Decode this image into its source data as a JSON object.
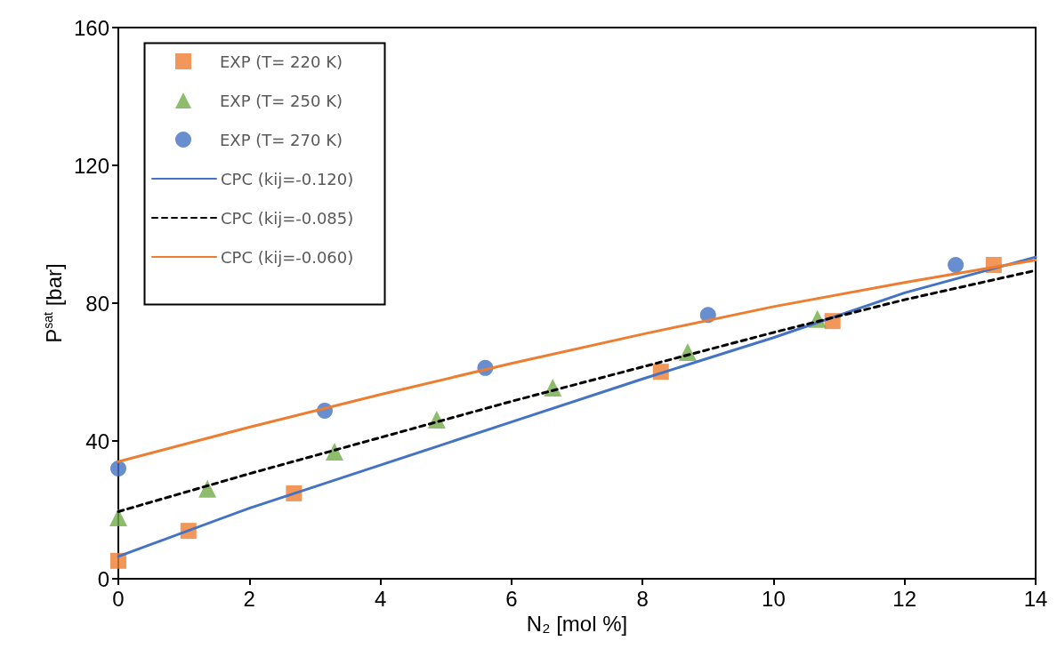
{
  "chart_data": {
    "type": "scatter",
    "xlabel": "N₂ [mol %]",
    "ylabel": "P$^{sat}$ [bar]",
    "xlim": [
      0,
      14
    ],
    "xticks": [
      0,
      2,
      4,
      6,
      8,
      10,
      12,
      14
    ],
    "ylim": [
      0,
      160
    ],
    "yticks": [
      0,
      40,
      80,
      120,
      160
    ],
    "grid": false,
    "legend": "top left",
    "series": [
      {
        "name": "EXP (T= 220 K)",
        "type": "scatter",
        "marker": "square",
        "color": "#ed7d31",
        "x": [
          0,
          1.07,
          2.68,
          8.28,
          10.9,
          13.36
        ],
        "values": [
          5.2,
          13.9,
          24.8,
          60.1,
          74.8,
          91.1
        ]
      },
      {
        "name": "EXP (T= 250 K)",
        "type": "scatter",
        "marker": "triangle",
        "color": "#70ad47",
        "x": [
          0,
          1.36,
          3.3,
          4.86,
          6.63,
          8.69,
          10.67
        ],
        "values": [
          17.8,
          26.1,
          36.9,
          46.2,
          55.5,
          65.8,
          75.4
        ]
      },
      {
        "name": "EXP (T= 270 K)",
        "type": "scatter",
        "marker": "circle",
        "color": "#4472c4",
        "x": [
          0,
          3.15,
          5.6,
          9.0,
          12.78
        ],
        "values": [
          32,
          48.8,
          61.2,
          76.6,
          91.1
        ]
      },
      {
        "name": "CPC (kij=-0.120)",
        "type": "line",
        "marker": "none",
        "line_style": "solid",
        "color": "#4472c4",
        "x": [
          0,
          2,
          4,
          6,
          8,
          10,
          12,
          14
        ],
        "values": [
          6.5,
          20.5,
          33,
          45.5,
          58,
          70,
          83,
          93.4
        ]
      },
      {
        "name": "CPC (kij=-0.085)",
        "type": "line",
        "marker": "none",
        "line_style": "dashed",
        "color": "#000000",
        "x": [
          0,
          2,
          4,
          6,
          8,
          10,
          12,
          14
        ],
        "values": [
          19.5,
          30.5,
          41,
          51.5,
          61.5,
          71.5,
          81,
          89.5
        ]
      },
      {
        "name": "CPC (kij=-0.060)",
        "type": "line",
        "marker": "none",
        "line_style": "solid",
        "color": "#ed7d31",
        "x": [
          0,
          2,
          4,
          6,
          8,
          10,
          12,
          14
        ],
        "values": [
          34,
          44,
          53.5,
          62.5,
          71,
          79,
          86,
          92.5
        ]
      }
    ]
  }
}
